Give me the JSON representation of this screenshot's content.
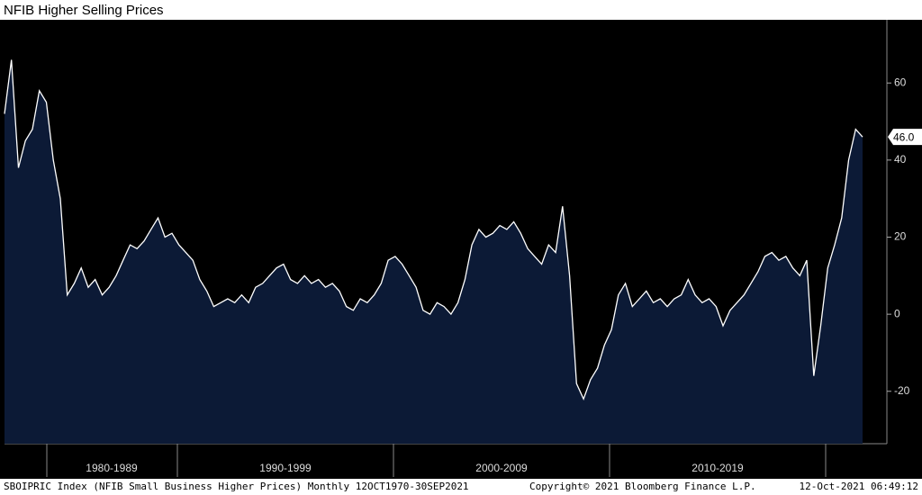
{
  "chart_data": {
    "type": "area",
    "title": "NFIB Higher Selling Prices",
    "x_labels": [
      "1980-1989",
      "1990-1999",
      "2000-2009",
      "2010-2019"
    ],
    "series": [
      {
        "name": "SBOIPRIC Index",
        "color": "#ffffff",
        "fill": "#0c1a36",
        "values": [
          52,
          66,
          38,
          45,
          48,
          58,
          55,
          40,
          30,
          5,
          8,
          12,
          7,
          9,
          5,
          7,
          10,
          14,
          18,
          17,
          19,
          22,
          25,
          20,
          21,
          18,
          16,
          14,
          9,
          6,
          2,
          3,
          4,
          3,
          5,
          3,
          7,
          8,
          10,
          12,
          13,
          9,
          8,
          10,
          8,
          9,
          7,
          8,
          6,
          2,
          1,
          4,
          3,
          5,
          8,
          14,
          15,
          13,
          10,
          7,
          1,
          0,
          3,
          2,
          0,
          3,
          9,
          18,
          22,
          20,
          21,
          23,
          22,
          24,
          21,
          17,
          15,
          13,
          18,
          16,
          28,
          10,
          -18,
          -22,
          -17,
          -14,
          -8,
          -4,
          5,
          8,
          2,
          4,
          6,
          3,
          4,
          2,
          4,
          5,
          9,
          5,
          3,
          4,
          2,
          -3,
          1,
          3,
          5,
          8,
          11,
          15,
          16,
          14,
          15,
          12,
          10,
          14,
          -16,
          -3,
          12,
          18,
          25,
          40,
          48,
          46
        ]
      }
    ],
    "last_value_label": "46.0",
    "ylim": [
      -33.6,
      76.4
    ],
    "yticks": [
      -20,
      0,
      20,
      40,
      60
    ],
    "footer_left": "SBOIPRIC Index (NFIB Small Business Higher Prices)  Monthly 12OCT1970-30SEP2021",
    "footer_center": "Copyright© 2021 Bloomberg Finance L.P.",
    "footer_right": "12-Oct-2021 06:49:12"
  }
}
